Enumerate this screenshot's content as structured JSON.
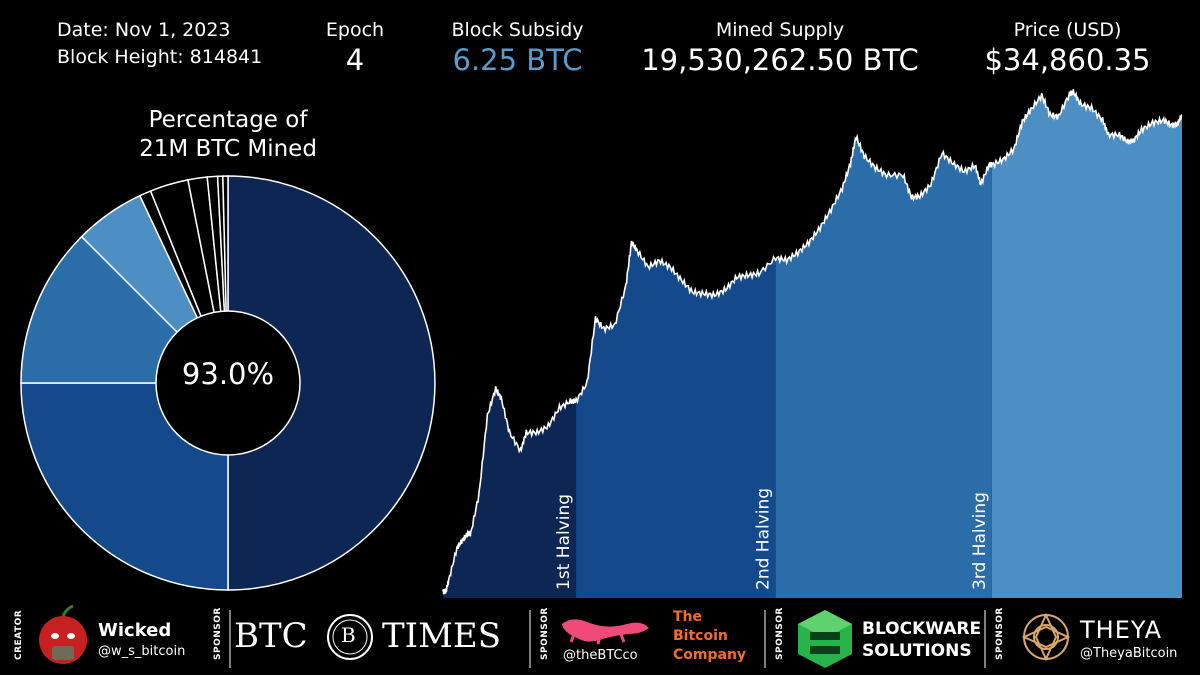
{
  "header": {
    "date": "Date: Nov 1, 2023",
    "block_height": "Block Height: 814841",
    "epoch": {
      "label": "Epoch",
      "value": "4"
    },
    "subsidy": {
      "label": "Block Subsidy",
      "value": "6.25 BTC"
    },
    "supply": {
      "label": "Mined Supply",
      "value": "19,530,262.50 BTC"
    },
    "price": {
      "label": "Price (USD)",
      "value": "$34,860.35"
    }
  },
  "colors": {
    "epoch0": "#0d2654",
    "epoch1": "#14498c",
    "epoch2": "#2b6da8",
    "epoch3": "#4d8fc2",
    "epoch4": "#5b9bc8",
    "pie_rest": "#000000",
    "line": "#ffffff"
  },
  "chart_data": [
    {
      "type": "pie",
      "title": "Percentage of\n21M BTC Mined",
      "center_label": "93.0%",
      "slices": [
        {
          "value": 50.0,
          "color": "#0d2654"
        },
        {
          "value": 25.0,
          "color": "#14498c"
        },
        {
          "value": 12.5,
          "color": "#2b6da8"
        },
        {
          "value": 5.5,
          "color": "#4d8fc2"
        },
        {
          "value": 0.9,
          "color": "#000000"
        },
        {
          "value": 3.0,
          "color": "#000000"
        },
        {
          "value": 1.5,
          "color": "#000000"
        },
        {
          "value": 0.8,
          "color": "#000000"
        },
        {
          "value": 0.4,
          "color": "#000000"
        },
        {
          "value": 0.4,
          "color": "#000000"
        }
      ]
    },
    {
      "type": "area",
      "xlabel": "",
      "ylabel": "",
      "scale": "log",
      "xlim": [
        2010.5,
        2023.83
      ],
      "ylim": [
        0.05,
        80000
      ],
      "halvings": [
        {
          "x": 2012.9,
          "label": "1st Halving"
        },
        {
          "x": 2016.5,
          "label": "2nd Halving"
        },
        {
          "x": 2020.4,
          "label": "3rd Halving"
        }
      ],
      "points": [
        [
          2010.5,
          0.06
        ],
        [
          2010.55,
          0.06
        ],
        [
          2010.6,
          0.08
        ],
        [
          2010.75,
          0.2
        ],
        [
          2010.85,
          0.25
        ],
        [
          2010.95,
          0.3
        ],
        [
          2011.0,
          0.3
        ],
        [
          2011.15,
          0.9
        ],
        [
          2011.3,
          8
        ],
        [
          2011.45,
          17
        ],
        [
          2011.55,
          13
        ],
        [
          2011.7,
          5
        ],
        [
          2011.9,
          3
        ],
        [
          2012.0,
          5
        ],
        [
          2012.2,
          5
        ],
        [
          2012.4,
          6
        ],
        [
          2012.6,
          10
        ],
        [
          2012.8,
          12
        ],
        [
          2012.9,
          12
        ],
        [
          2013.1,
          20
        ],
        [
          2013.25,
          120
        ],
        [
          2013.4,
          90
        ],
        [
          2013.6,
          100
        ],
        [
          2013.8,
          300
        ],
        [
          2013.9,
          1000
        ],
        [
          2014.0,
          800
        ],
        [
          2014.2,
          500
        ],
        [
          2014.4,
          600
        ],
        [
          2014.6,
          500
        ],
        [
          2014.8,
          350
        ],
        [
          2015.0,
          250
        ],
        [
          2015.2,
          240
        ],
        [
          2015.4,
          230
        ],
        [
          2015.6,
          270
        ],
        [
          2015.8,
          380
        ],
        [
          2016.0,
          400
        ],
        [
          2016.2,
          420
        ],
        [
          2016.5,
          650
        ],
        [
          2016.7,
          610
        ],
        [
          2016.9,
          750
        ],
        [
          2017.1,
          1000
        ],
        [
          2017.3,
          1500
        ],
        [
          2017.5,
          2500
        ],
        [
          2017.7,
          4500
        ],
        [
          2017.85,
          9000
        ],
        [
          2017.95,
          19000
        ],
        [
          2018.1,
          11000
        ],
        [
          2018.3,
          8000
        ],
        [
          2018.5,
          6500
        ],
        [
          2018.8,
          6500
        ],
        [
          2018.95,
          3500
        ],
        [
          2019.1,
          3600
        ],
        [
          2019.3,
          5000
        ],
        [
          2019.5,
          12000
        ],
        [
          2019.7,
          9000
        ],
        [
          2019.9,
          7200
        ],
        [
          2020.1,
          8500
        ],
        [
          2020.2,
          5000
        ],
        [
          2020.35,
          8800
        ],
        [
          2020.4,
          8600
        ],
        [
          2020.6,
          10000
        ],
        [
          2020.8,
          13500
        ],
        [
          2020.95,
          29000
        ],
        [
          2021.1,
          40000
        ],
        [
          2021.3,
          60000
        ],
        [
          2021.45,
          35000
        ],
        [
          2021.6,
          33000
        ],
        [
          2021.8,
          62000
        ],
        [
          2021.87,
          66000
        ],
        [
          2022.0,
          47000
        ],
        [
          2022.2,
          42000
        ],
        [
          2022.4,
          30000
        ],
        [
          2022.5,
          20000
        ],
        [
          2022.7,
          20000
        ],
        [
          2022.85,
          16500
        ],
        [
          2022.95,
          16800
        ],
        [
          2023.1,
          23000
        ],
        [
          2023.3,
          28000
        ],
        [
          2023.5,
          30000
        ],
        [
          2023.65,
          26000
        ],
        [
          2023.75,
          27000
        ],
        [
          2023.83,
          34860
        ]
      ]
    }
  ],
  "sponsors": {
    "creator_tag": "CREATOR",
    "sponsor_tag": "SPONSOR",
    "wicked_name": "Wicked",
    "wicked_handle": "@w_s_bitcoin",
    "btc_times_left": "BTC",
    "btc_times_mid": "B",
    "btc_times_right": "TIMES",
    "tbc_handle": "@theBTCco",
    "tbc_line1": "The",
    "tbc_line2": "Bitcoin",
    "tbc_line3": "Company",
    "blockware_line1": "BLOCKWARE",
    "blockware_line2": "SOLUTIONS",
    "theya_name": "THEYA",
    "theya_handle": "@TheyaBitcoin"
  }
}
